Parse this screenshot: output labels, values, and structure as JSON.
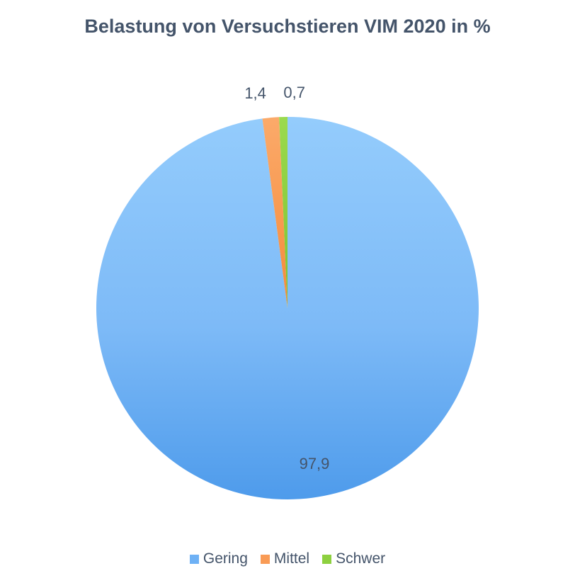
{
  "chart_data": {
    "type": "pie",
    "title": "Belastung von Versuchstieren VIM 2020 in %",
    "categories": [
      "Gering",
      "Mittel",
      "Schwer"
    ],
    "values": [
      97.9,
      1.4,
      0.7
    ],
    "labels": [
      "97,9",
      "1,4",
      "0,7"
    ],
    "colors": [
      "#6EB1F5",
      "#F99B55",
      "#8DD03F"
    ],
    "legend_position": "bottom"
  }
}
